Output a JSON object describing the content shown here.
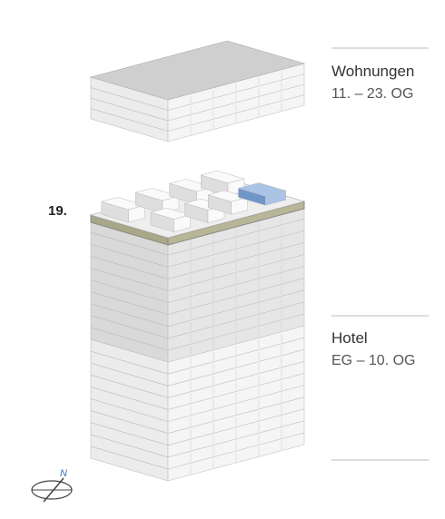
{
  "labels": {
    "apartments": {
      "title": "Wohnungen",
      "floors": "11. – 23. OG"
    },
    "hotel": {
      "title": "Hotel",
      "floors": "EG – 10. OG"
    },
    "highlight_floor": "19.",
    "compass": "N"
  }
}
